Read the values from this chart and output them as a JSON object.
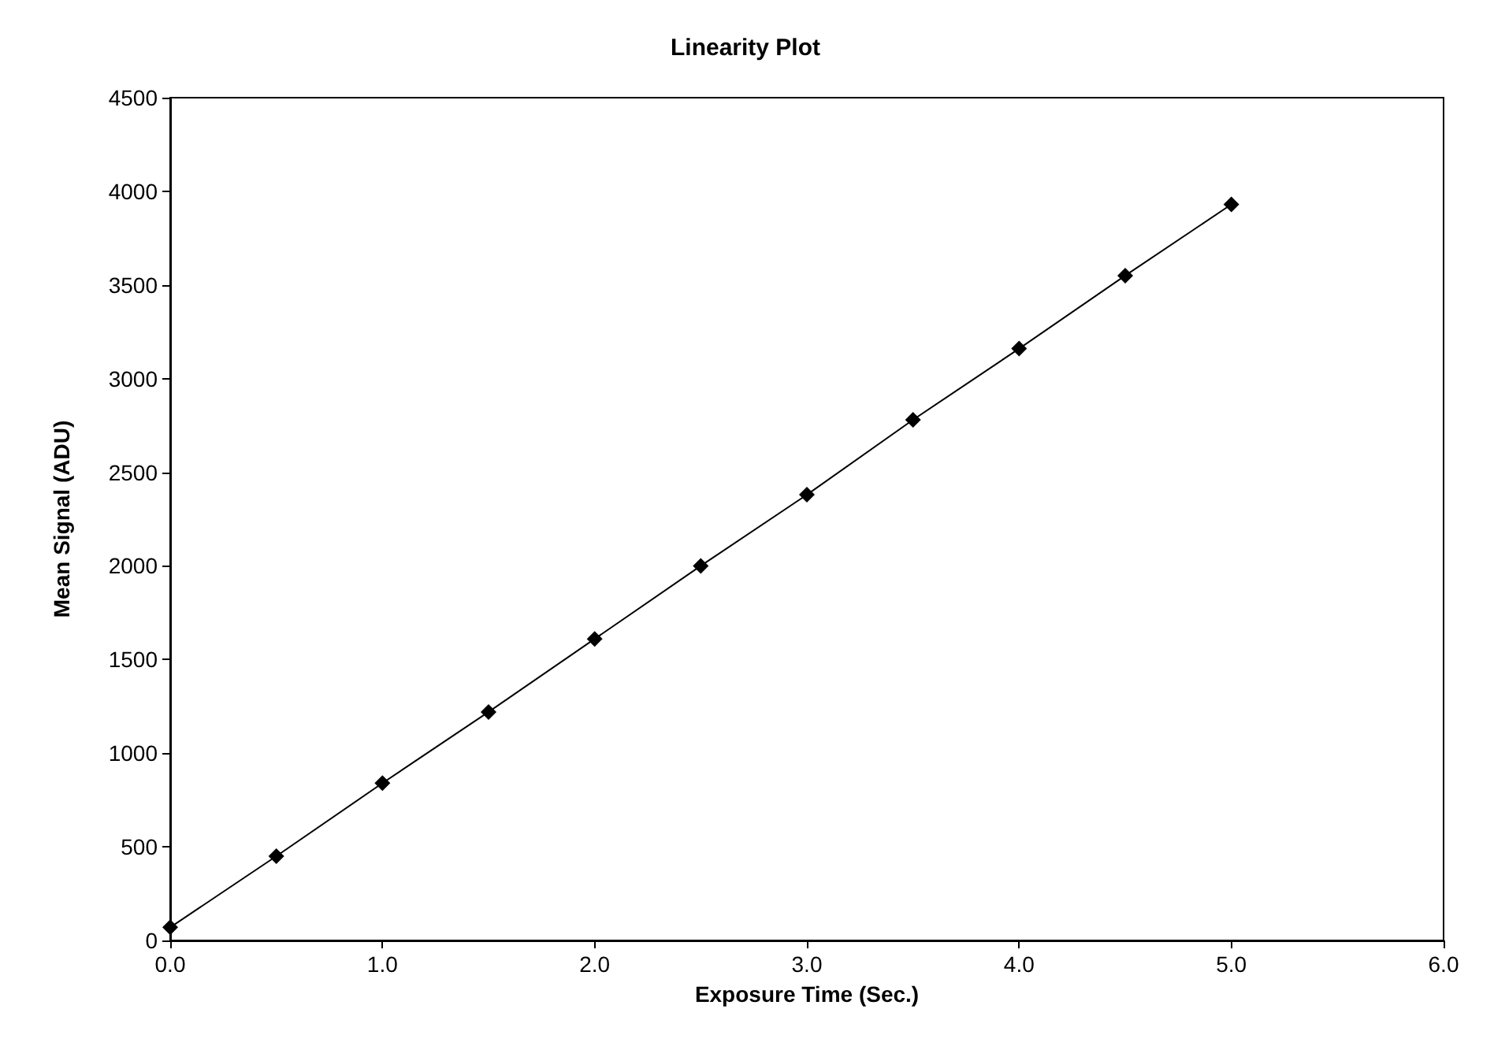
{
  "chart_data": {
    "type": "line",
    "title": "Linearity Plot",
    "xlabel": "Exposure Time (Sec.)",
    "ylabel": "Mean Signal (ADU)",
    "x": [
      0,
      0.5,
      1,
      1.5,
      2,
      2.5,
      3,
      3.5,
      4,
      4.5,
      5
    ],
    "series": [
      {
        "color": "#000000",
        "values": [
          70,
          450,
          840,
          1220,
          1610,
          2000,
          2380,
          2780,
          3160,
          3550,
          3930
        ]
      }
    ],
    "xlim": [
      0,
      6
    ],
    "xticks": [
      {
        "value": 0,
        "label": "0.0"
      },
      {
        "value": 1,
        "label": "1.0"
      },
      {
        "value": 2,
        "label": "2.0"
      },
      {
        "value": 3,
        "label": "3.0"
      },
      {
        "value": 4,
        "label": "4.0"
      },
      {
        "value": 5,
        "label": "5.0"
      },
      {
        "value": 6,
        "label": "6.0"
      }
    ],
    "ylim": [
      0,
      4500
    ],
    "yticks": [
      0,
      500,
      1000,
      1500,
      2000,
      2500,
      3000,
      3500,
      4000,
      4500
    ],
    "grid": false,
    "marker": "diamond",
    "line_style": "solid"
  }
}
